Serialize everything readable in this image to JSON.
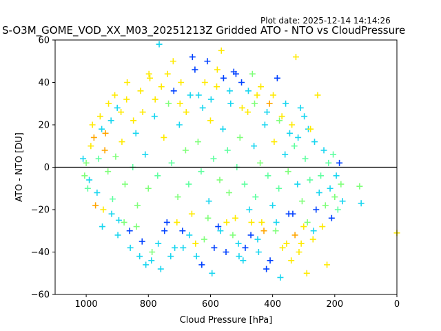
{
  "header": {
    "plot_date": "Plot date: 2025-12-14 14:14:26",
    "title": "S-O3M_GOME_VOD_XX_M03_20251213Z Gridded ATO - NTO vs CloudPressure"
  },
  "chart_data": {
    "type": "scatter",
    "marker": "plus",
    "xlabel": "Cloud Pressure [hPa]",
    "ylabel": "ATO - NTO [DU]",
    "xlim": [
      1100,
      0
    ],
    "ylim": [
      -60,
      60
    ],
    "xticks": [
      1000,
      800,
      600,
      400,
      200,
      0
    ],
    "yticks": [
      -60,
      -40,
      -20,
      0,
      20,
      40,
      60
    ],
    "reference_line_y": 0,
    "colors": [
      "#80ff7a",
      "#19d6f0",
      "#5fffa0",
      "#ffea00",
      "#0040ff",
      "#ffa500"
    ],
    "points": [
      [
        1000,
        2,
        0
      ],
      [
        990,
        -6,
        1
      ],
      [
        985,
        10,
        3
      ],
      [
        975,
        14,
        5
      ],
      [
        965,
        -12,
        1
      ],
      [
        960,
        4,
        2
      ],
      [
        950,
        18,
        1
      ],
      [
        945,
        -20,
        3
      ],
      [
        940,
        8,
        5
      ],
      [
        930,
        -2,
        0
      ],
      [
        920,
        22,
        1
      ],
      [
        915,
        -15,
        2
      ],
      [
        905,
        5,
        0
      ],
      [
        900,
        28,
        1
      ],
      [
        895,
        -25,
        1
      ],
      [
        885,
        12,
        3
      ],
      [
        875,
        -8,
        0
      ],
      [
        870,
        32,
        3
      ],
      [
        860,
        -30,
        4
      ],
      [
        850,
        0,
        2
      ],
      [
        840,
        16,
        1
      ],
      [
        835,
        -18,
        0
      ],
      [
        825,
        36,
        3
      ],
      [
        820,
        -35,
        4
      ],
      [
        810,
        6,
        1
      ],
      [
        800,
        -10,
        0
      ],
      [
        795,
        42,
        3
      ],
      [
        790,
        -44,
        1
      ],
      [
        780,
        24,
        1
      ],
      [
        770,
        -4,
        2
      ],
      [
        765,
        58,
        1
      ],
      [
        760,
        -48,
        1
      ],
      [
        750,
        14,
        3
      ],
      [
        740,
        -26,
        4
      ],
      [
        735,
        30,
        0
      ],
      [
        725,
        2,
        2
      ],
      [
        720,
        50,
        3
      ],
      [
        715,
        -38,
        1
      ],
      [
        705,
        -14,
        0
      ],
      [
        700,
        20,
        1
      ],
      [
        695,
        40,
        3
      ],
      [
        690,
        -30,
        4
      ],
      [
        680,
        8,
        0
      ],
      [
        670,
        -8,
        2
      ],
      [
        665,
        34,
        1
      ],
      [
        660,
        -22,
        3
      ],
      [
        650,
        46,
        4
      ],
      [
        645,
        -42,
        1
      ],
      [
        640,
        12,
        0
      ],
      [
        630,
        -2,
        2
      ],
      [
        625,
        28,
        1
      ],
      [
        620,
        -34,
        0
      ],
      [
        610,
        50,
        4
      ],
      [
        605,
        -16,
        1
      ],
      [
        600,
        22,
        3
      ],
      [
        595,
        -50,
        1
      ],
      [
        590,
        4,
        2
      ],
      [
        580,
        38,
        3
      ],
      [
        575,
        -28,
        4
      ],
      [
        570,
        -6,
        0
      ],
      [
        565,
        55,
        3
      ],
      [
        560,
        18,
        1
      ],
      [
        550,
        -40,
        4
      ],
      [
        545,
        8,
        2
      ],
      [
        540,
        -12,
        0
      ],
      [
        535,
        30,
        1
      ],
      [
        525,
        45,
        4
      ],
      [
        520,
        -24,
        3
      ],
      [
        515,
        0,
        2
      ],
      [
        510,
        -36,
        1
      ],
      [
        505,
        14,
        0
      ],
      [
        500,
        40,
        4
      ],
      [
        495,
        -44,
        1
      ],
      [
        490,
        -8,
        2
      ],
      [
        480,
        26,
        3
      ],
      [
        475,
        -20,
        1
      ],
      [
        470,
        -32,
        4
      ],
      [
        465,
        44,
        0
      ],
      [
        460,
        10,
        1
      ],
      [
        455,
        -14,
        2
      ],
      [
        450,
        34,
        3
      ],
      [
        445,
        -40,
        1
      ],
      [
        440,
        2,
        0
      ],
      [
        435,
        -26,
        3
      ],
      [
        425,
        20,
        1
      ],
      [
        420,
        -48,
        4
      ],
      [
        415,
        -4,
        2
      ],
      [
        410,
        30,
        5
      ],
      [
        400,
        -18,
        1
      ],
      [
        395,
        12,
        3
      ],
      [
        390,
        -30,
        0
      ],
      [
        385,
        42,
        4
      ],
      [
        380,
        -10,
        2
      ],
      [
        375,
        -52,
        1
      ],
      [
        370,
        24,
        3
      ],
      [
        360,
        6,
        1
      ],
      [
        355,
        -36,
        3
      ],
      [
        350,
        -2,
        0
      ],
      [
        345,
        16,
        1
      ],
      [
        340,
        -44,
        3
      ],
      [
        335,
        -22,
        4
      ],
      [
        330,
        10,
        2
      ],
      [
        325,
        52,
        3
      ],
      [
        320,
        -8,
        1
      ],
      [
        315,
        -40,
        3
      ],
      [
        310,
        28,
        1
      ],
      [
        305,
        -16,
        0
      ],
      [
        300,
        -28,
        3
      ],
      [
        295,
        4,
        2
      ],
      [
        290,
        -50,
        3
      ],
      [
        285,
        18,
        1
      ],
      [
        280,
        -6,
        2
      ],
      [
        270,
        -34,
        3
      ],
      [
        265,
        12,
        1
      ],
      [
        260,
        -20,
        4
      ],
      [
        255,
        34,
        3
      ],
      [
        250,
        -12,
        1
      ],
      [
        245,
        -4,
        2
      ],
      [
        240,
        -28,
        3
      ],
      [
        235,
        8,
        1
      ],
      [
        230,
        -18,
        0
      ],
      [
        225,
        -46,
        3
      ],
      [
        220,
        2,
        2
      ],
      [
        215,
        -10,
        1
      ],
      [
        210,
        -24,
        4
      ],
      [
        205,
        6,
        2
      ],
      [
        200,
        -14,
        0
      ],
      [
        195,
        -4,
        1
      ],
      [
        190,
        -20,
        2
      ],
      [
        185,
        2,
        4
      ],
      [
        180,
        -8,
        0
      ],
      [
        175,
        -16,
        1
      ],
      [
        120,
        -9,
        0
      ],
      [
        115,
        -17,
        1
      ],
      [
        0,
        -31,
        3
      ],
      [
        1010,
        4,
        1
      ],
      [
        1005,
        -4,
        0
      ],
      [
        995,
        -10,
        2
      ],
      [
        980,
        20,
        3
      ],
      [
        970,
        -18,
        5
      ],
      [
        955,
        24,
        3
      ],
      [
        948,
        -28,
        1
      ],
      [
        938,
        16,
        5
      ],
      [
        928,
        30,
        3
      ],
      [
        918,
        -22,
        1
      ],
      [
        908,
        34,
        3
      ],
      [
        898,
        -32,
        1
      ],
      [
        888,
        26,
        3
      ],
      [
        878,
        -26,
        0
      ],
      [
        868,
        40,
        3
      ],
      [
        858,
        -38,
        1
      ],
      [
        848,
        22,
        3
      ],
      [
        838,
        -28,
        0
      ],
      [
        828,
        -42,
        1
      ],
      [
        818,
        26,
        3
      ],
      [
        808,
        -46,
        1
      ],
      [
        798,
        44,
        3
      ],
      [
        788,
        -40,
        0
      ],
      [
        778,
        32,
        3
      ],
      [
        768,
        -36,
        1
      ],
      [
        758,
        38,
        3
      ],
      [
        748,
        -30,
        4
      ],
      [
        738,
        44,
        3
      ],
      [
        728,
        -42,
        1
      ],
      [
        718,
        36,
        4
      ],
      [
        708,
        -26,
        3
      ],
      [
        698,
        30,
        3
      ],
      [
        688,
        -38,
        1
      ],
      [
        678,
        26,
        3
      ],
      [
        668,
        -32,
        1
      ],
      [
        658,
        52,
        4
      ],
      [
        648,
        -36,
        3
      ],
      [
        638,
        34,
        1
      ],
      [
        628,
        -46,
        4
      ],
      [
        618,
        40,
        3
      ],
      [
        608,
        -24,
        0
      ],
      [
        598,
        32,
        1
      ],
      [
        588,
        -38,
        4
      ],
      [
        578,
        46,
        3
      ],
      [
        568,
        -30,
        1
      ],
      [
        558,
        42,
        4
      ],
      [
        548,
        -26,
        3
      ],
      [
        538,
        36,
        1
      ],
      [
        528,
        -32,
        0
      ],
      [
        518,
        44,
        4
      ],
      [
        508,
        -42,
        1
      ],
      [
        498,
        28,
        3
      ],
      [
        488,
        -38,
        4
      ],
      [
        478,
        36,
        1
      ],
      [
        468,
        -26,
        3
      ],
      [
        458,
        30,
        0
      ],
      [
        448,
        -34,
        1
      ],
      [
        438,
        38,
        3
      ],
      [
        428,
        -30,
        5
      ],
      [
        418,
        26,
        1
      ],
      [
        408,
        -44,
        4
      ],
      [
        398,
        34,
        3
      ],
      [
        388,
        -26,
        1
      ],
      [
        378,
        22,
        0
      ],
      [
        368,
        -38,
        3
      ],
      [
        358,
        30,
        1
      ],
      [
        348,
        -22,
        4
      ],
      [
        338,
        20,
        3
      ],
      [
        328,
        -32,
        5
      ],
      [
        318,
        14,
        1
      ],
      [
        308,
        -36,
        3
      ],
      [
        298,
        24,
        1
      ],
      [
        288,
        -26,
        0
      ],
      [
        278,
        18,
        3
      ],
      [
        268,
        -30,
        1
      ]
    ]
  }
}
